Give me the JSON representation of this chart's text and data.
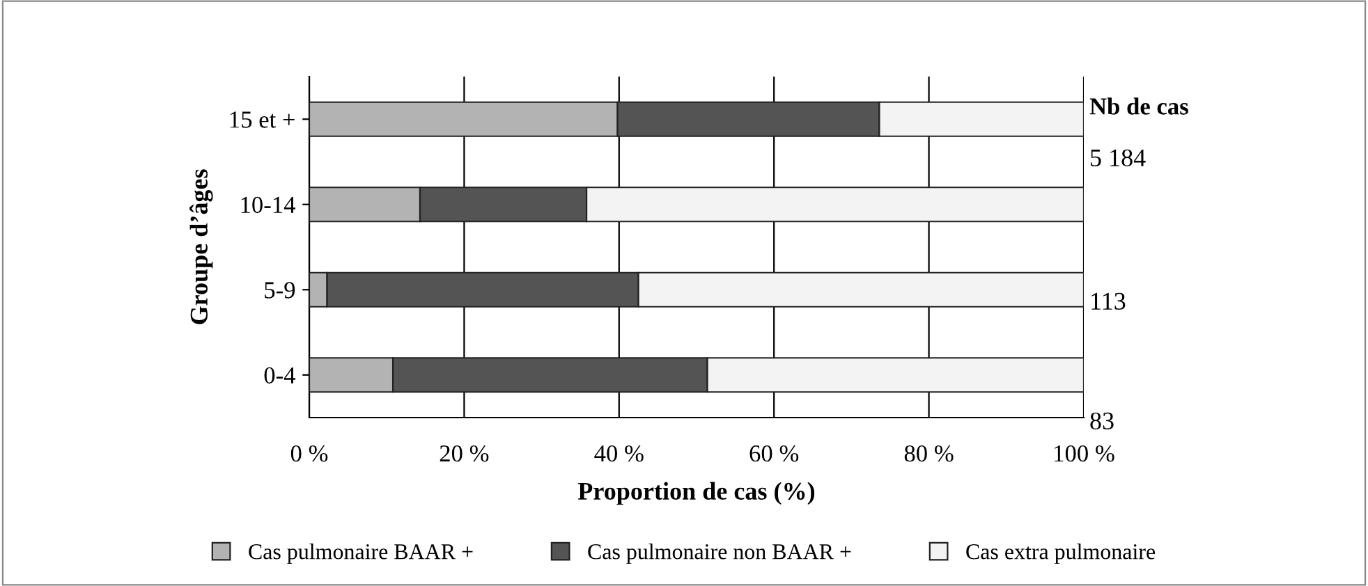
{
  "chart_data": {
    "type": "bar",
    "orientation": "horizontal",
    "stacked": true,
    "categories": [
      "15 et +",
      "10-14",
      "5-9",
      "0-4"
    ],
    "series": [
      {
        "name": "Cas pulmonaire BAAR +",
        "color": "#b3b3b3",
        "values": [
          39.8,
          14.3,
          2.3,
          10.8
        ]
      },
      {
        "name": "Cas pulmonaire non BAAR +",
        "color": "#545454",
        "values": [
          33.8,
          21.5,
          40.2,
          40.6
        ]
      },
      {
        "name": "Cas extra pulmonaire",
        "color": "#f3f3f3",
        "values": [
          26.4,
          64.2,
          57.5,
          48.6
        ]
      }
    ],
    "xlim": [
      0,
      100
    ],
    "xticks": [
      {
        "value": 0,
        "label": "0 %"
      },
      {
        "value": 20,
        "label": "20 %"
      },
      {
        "value": 40,
        "label": "40 %"
      },
      {
        "value": 60,
        "label": "60 %"
      },
      {
        "value": 80,
        "label": "80 %"
      },
      {
        "value": 100,
        "label": "100 %"
      }
    ],
    "xlabel": "Proportion de cas (%)",
    "ylabel": "Groupe d’âges",
    "grid": "x",
    "legend": "bottom",
    "annotations": [
      "Nb de cas",
      "5 184",
      "113",
      "83"
    ]
  }
}
